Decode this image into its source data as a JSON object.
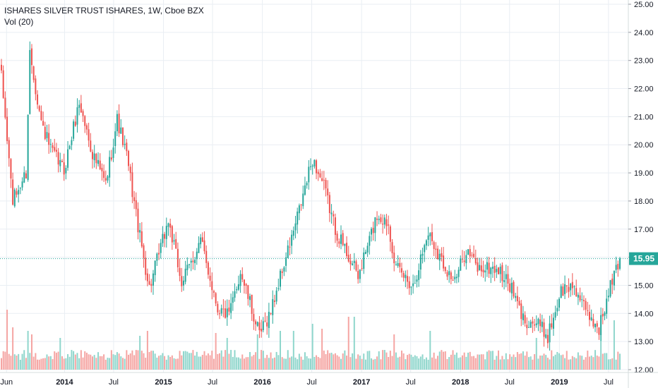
{
  "header": {
    "title": "ISHARES SILVER TRUST ISHARES, 1W, Cboe BZX",
    "volume_label": "Vol (20)"
  },
  "colors": {
    "up": "#26a69a",
    "down": "#ef5350",
    "vol_up": "#8fd6cc",
    "vol_down": "#f5a5a3",
    "grid": "#e9eef3",
    "price_line": "#26a69a",
    "price_tag": "#26a69a"
  },
  "chart_data": {
    "type": "candlestick",
    "title": "ISHARES SILVER TRUST ISHARES, 1W, Cboe BZX",
    "y_ticks": [
      "12.00",
      "13.00",
      "14.00",
      "15.00",
      "16.00",
      "17.00",
      "18.00",
      "19.00",
      "20.00",
      "21.00",
      "22.00",
      "23.00",
      "24.00",
      "25.00"
    ],
    "ylim": [
      12,
      25
    ],
    "x_ticks": [
      "Jun",
      "2014",
      "Jul",
      "2015",
      "Jul",
      "2016",
      "Jul",
      "2017",
      "Jul",
      "2018",
      "Jul",
      "2019",
      "Jul"
    ],
    "x_tick_dates": [
      "2013-06-01",
      "2014-01-01",
      "2014-07-01",
      "2015-01-01",
      "2015-07-01",
      "2016-01-01",
      "2016-07-01",
      "2017-01-01",
      "2017-07-01",
      "2018-01-01",
      "2018-07-01",
      "2019-01-01",
      "2019-07-01"
    ],
    "x_range": [
      "2013-05-13",
      "2019-08-12"
    ],
    "last_price": 15.95,
    "last_price_label": "15.95",
    "grid": true,
    "anchors": [
      [
        "2013-05-13",
        22.4
      ],
      [
        "2013-06-24",
        18.0
      ],
      [
        "2013-08-12",
        19.0
      ],
      [
        "2013-08-26",
        23.3
      ],
      [
        "2013-10-07",
        20.8
      ],
      [
        "2013-11-11",
        19.8
      ],
      [
        "2013-12-30",
        19.1
      ],
      [
        "2014-02-24",
        21.5
      ],
      [
        "2014-04-14",
        19.7
      ],
      [
        "2014-06-02",
        18.6
      ],
      [
        "2014-07-14",
        20.9
      ],
      [
        "2014-08-18",
        19.6
      ],
      [
        "2014-10-06",
        16.7
      ],
      [
        "2014-11-10",
        14.9
      ],
      [
        "2015-01-19",
        17.3
      ],
      [
        "2015-03-09",
        15.1
      ],
      [
        "2015-04-13",
        15.8
      ],
      [
        "2015-05-18",
        16.6
      ],
      [
        "2015-07-20",
        14.2
      ],
      [
        "2015-08-31",
        13.9
      ],
      [
        "2015-10-12",
        15.5
      ],
      [
        "2015-12-21",
        13.2
      ],
      [
        "2016-02-01",
        14.1
      ],
      [
        "2016-03-07",
        15.3
      ],
      [
        "2016-04-25",
        16.9
      ],
      [
        "2016-07-04",
        19.5
      ],
      [
        "2016-08-15",
        18.5
      ],
      [
        "2016-09-26",
        17.0
      ],
      [
        "2016-11-21",
        15.9
      ],
      [
        "2016-12-19",
        15.3
      ],
      [
        "2017-02-27",
        17.5
      ],
      [
        "2017-04-10",
        17.2
      ],
      [
        "2017-05-08",
        15.6
      ],
      [
        "2017-07-10",
        15.0
      ],
      [
        "2017-09-04",
        16.9
      ],
      [
        "2017-10-23",
        15.9
      ],
      [
        "2017-12-11",
        15.1
      ],
      [
        "2018-01-22",
        16.3
      ],
      [
        "2018-03-05",
        15.6
      ],
      [
        "2018-05-14",
        15.6
      ],
      [
        "2018-07-02",
        15.0
      ],
      [
        "2018-08-20",
        13.8
      ],
      [
        "2018-10-15",
        13.6
      ],
      [
        "2018-11-19",
        13.2
      ],
      [
        "2019-01-07",
        14.8
      ],
      [
        "2019-02-25",
        15.0
      ],
      [
        "2019-04-08",
        14.0
      ],
      [
        "2019-05-27",
        13.5
      ],
      [
        "2019-06-24",
        14.4
      ],
      [
        "2019-07-15",
        15.2
      ],
      [
        "2019-08-12",
        15.95
      ]
    ],
    "volume_ylim": [
      0,
      100
    ],
    "volume_peaks": [
      [
        "2013-06-03",
        85
      ],
      [
        "2013-06-24",
        60
      ],
      [
        "2013-08-19",
        55
      ],
      [
        "2013-09-02",
        50
      ],
      [
        "2013-12-16",
        45
      ],
      [
        "2014-10-06",
        48
      ],
      [
        "2014-11-03",
        55
      ],
      [
        "2015-07-13",
        52
      ],
      [
        "2015-08-24",
        45
      ],
      [
        "2015-12-14",
        50
      ],
      [
        "2016-03-07",
        55
      ],
      [
        "2016-04-25",
        55
      ],
      [
        "2016-07-04",
        65
      ],
      [
        "2016-08-08",
        58
      ],
      [
        "2016-11-14",
        75
      ],
      [
        "2016-12-05",
        75
      ],
      [
        "2017-05-01",
        50
      ],
      [
        "2017-09-11",
        55
      ],
      [
        "2018-10-08",
        45
      ],
      [
        "2019-06-03",
        48
      ],
      [
        "2019-07-22",
        70
      ]
    ]
  }
}
